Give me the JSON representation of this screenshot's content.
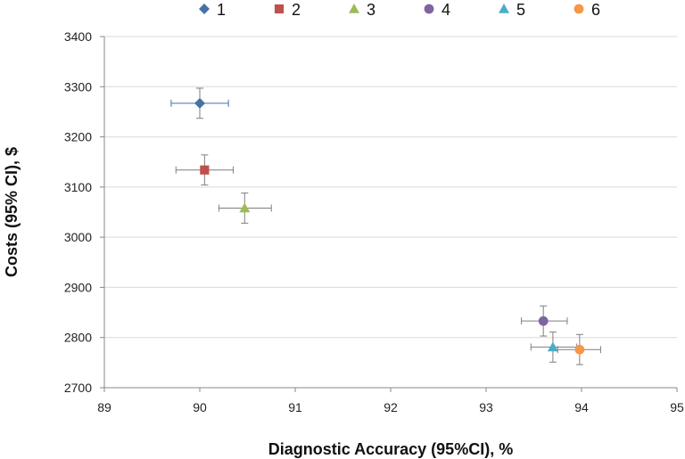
{
  "chart_data": {
    "type": "scatter",
    "title": "",
    "xlabel": "Diagnostic Accuracy (95%CI), %",
    "ylabel": "Costs (95% CI), $",
    "xlim": [
      89,
      95
    ],
    "ylim": [
      2700,
      3400
    ],
    "xticks": [
      "89",
      "90",
      "91",
      "92",
      "93",
      "94",
      "95"
    ],
    "yticks": [
      "2700",
      "2800",
      "2900",
      "3000",
      "3100",
      "3200",
      "3300",
      "3400"
    ],
    "grid": "horizontal",
    "legend_position": "top",
    "series": [
      {
        "name": "1",
        "marker": "diamond",
        "color": "#4572A7",
        "x": 90.0,
        "y": 3267,
        "x_err": [
          89.7,
          90.3
        ],
        "y_err": [
          3237,
          3297
        ]
      },
      {
        "name": "2",
        "marker": "square",
        "color": "#C0504D",
        "x": 90.05,
        "y": 3134,
        "x_err": [
          89.75,
          90.35
        ],
        "y_err": [
          3104,
          3164
        ]
      },
      {
        "name": "3",
        "marker": "triangle",
        "color": "#9BBB59",
        "x": 90.47,
        "y": 3058,
        "x_err": [
          90.2,
          90.75
        ],
        "y_err": [
          3028,
          3088
        ]
      },
      {
        "name": "4",
        "marker": "circle",
        "color": "#8064A2",
        "x": 93.6,
        "y": 2833,
        "x_err": [
          93.37,
          93.85
        ],
        "y_err": [
          2803,
          2863
        ]
      },
      {
        "name": "5",
        "marker": "triangle",
        "color": "#4BACC6",
        "x": 93.7,
        "y": 2781,
        "x_err": [
          93.47,
          93.95
        ],
        "y_err": [
          2751,
          2811
        ]
      },
      {
        "name": "6",
        "marker": "circle",
        "color": "#F79646",
        "x": 93.98,
        "y": 2776,
        "x_err": [
          93.75,
          94.2
        ],
        "y_err": [
          2746,
          2806
        ]
      }
    ]
  }
}
